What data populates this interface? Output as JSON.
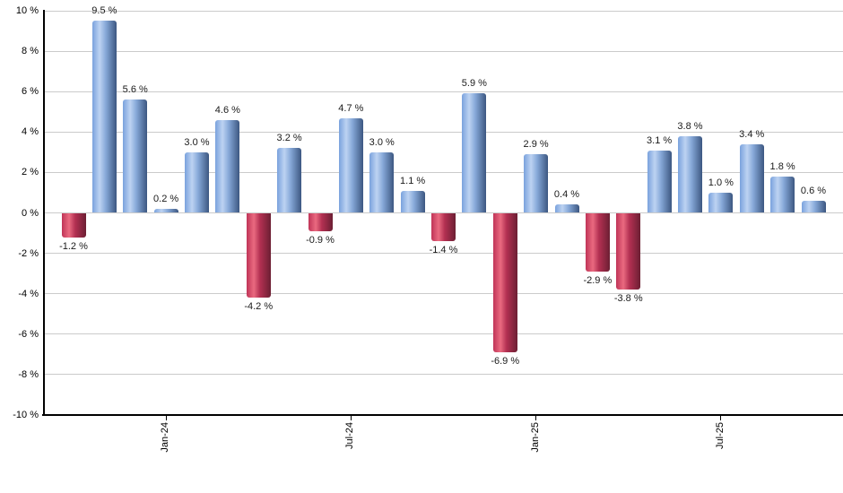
{
  "chart_data": {
    "type": "bar",
    "title": "",
    "unit": "%",
    "values": [
      -1.2,
      9.5,
      5.6,
      0.2,
      3.0,
      4.6,
      -4.2,
      3.2,
      -0.9,
      4.7,
      3.0,
      1.1,
      -1.4,
      5.9,
      -6.9,
      2.9,
      0.4,
      -2.9,
      -3.8,
      3.1,
      3.8,
      1.0,
      3.4,
      1.8,
      0.6
    ],
    "value_label_suffix": " %",
    "ylim": [
      -10,
      10
    ],
    "ytick_step": 2,
    "yticks": [
      {
        "value": 10,
        "label": "10 %"
      },
      {
        "value": 8,
        "label": "8 %"
      },
      {
        "value": 6,
        "label": "6 %"
      },
      {
        "value": 4,
        "label": "4 %"
      },
      {
        "value": 2,
        "label": "2 %"
      },
      {
        "value": 0,
        "label": "0 %"
      },
      {
        "value": -2,
        "label": "-2 %"
      },
      {
        "value": -4,
        "label": "-4 %"
      },
      {
        "value": -6,
        "label": "-6 %"
      },
      {
        "value": -8,
        "label": "-8 %"
      },
      {
        "value": -10,
        "label": "-10 %"
      }
    ],
    "xticks": [
      {
        "bar_index": 3,
        "label": "Jan-24"
      },
      {
        "bar_index": 9,
        "label": "Jul-24"
      },
      {
        "bar_index": 15,
        "label": "Jan-25"
      },
      {
        "bar_index": 21,
        "label": "Jul-25"
      }
    ],
    "grid": true,
    "legend": false,
    "colors": {
      "positive_bar_gradient": [
        "#7AA2DD",
        "#BDD3F2",
        "#87A9D9",
        "#3C5781"
      ],
      "negative_bar_gradient": [
        "#C03457",
        "#EA6A80",
        "#B33052",
        "#6C1F33"
      ],
      "gridline": "#CBCBCB",
      "axis": "#000000",
      "tick_label_text": "#000000",
      "value_label_text": "#1A1A1A",
      "background": "#FFFFFF"
    }
  }
}
